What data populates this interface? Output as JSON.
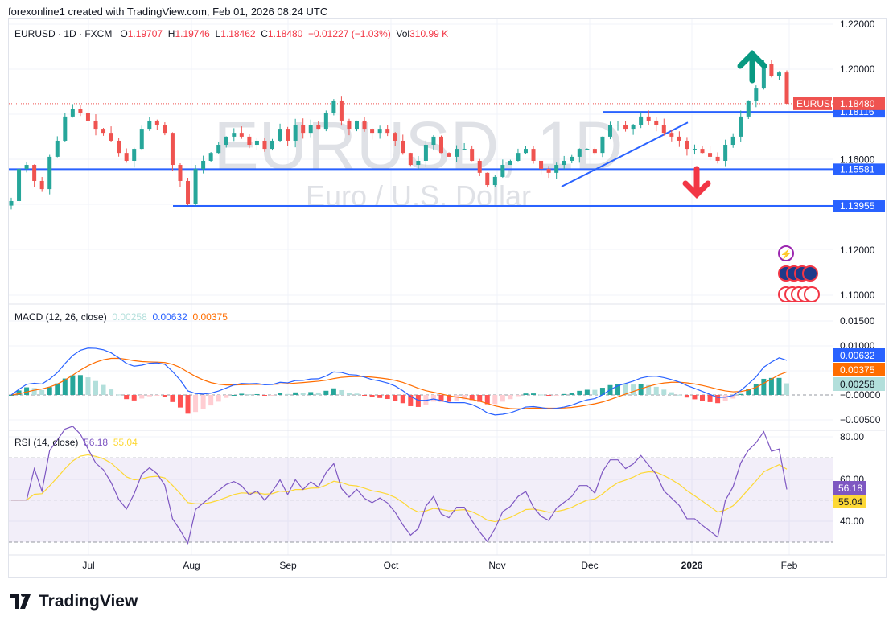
{
  "header": {
    "credit": "forexonline1 created with TradingView.com, Feb 01, 2026 08:24 UTC"
  },
  "legend": {
    "symbol": "EURUSD · 1D · FXCM",
    "o_label": "O",
    "o": "1.19707",
    "h_label": "H",
    "h": "1.19746",
    "l_label": "L",
    "l": "1.18462",
    "c_label": "C",
    "c": "1.18480",
    "change": "−0.01227 (−1.03%)",
    "vol_label": "Vol",
    "vol": "310.99 K"
  },
  "watermark": {
    "title": "EURUSD, 1D",
    "subtitle": "Euro / U.S. Dollar"
  },
  "macd_legend": {
    "name": "MACD (12, 26, close)",
    "hist": "0.00258",
    "macd": "0.00632",
    "signal": "0.00375"
  },
  "rsi_legend": {
    "name": "RSI (14, close)",
    "rsi": "56.18",
    "ma": "55.04"
  },
  "colors": {
    "up": "#26a69a",
    "down": "#ef5350",
    "level": "#2962ff",
    "macd": "#2962ff",
    "signal": "#ff6d00",
    "rsi": "#7e57c2",
    "rsi_ma": "#fdd835",
    "hist_up": "#26a69a",
    "hist_up_light": "#b2dfdb",
    "hist_down": "#ff5252",
    "hist_down_light": "#ffcdd2"
  },
  "branding": {
    "logo_text": "TradingView"
  },
  "chart_data": {
    "type": "candlestick",
    "symbol": "EURUSD",
    "interval": "1D",
    "x_ticks": [
      "Jul",
      "Aug",
      "Sep",
      "Oct",
      "Nov",
      "Dec",
      "2026",
      "Feb"
    ],
    "y_ticks": [
      "1.22000",
      "1.20000",
      "1.16000",
      "1.12000",
      "1.10000"
    ],
    "ylim": [
      1.1,
      1.22
    ],
    "last_close": 1.1848,
    "last_label": "EURUSD",
    "last_value": "1.18480",
    "closes": [
      1.1417,
      1.1559,
      1.1577,
      1.1506,
      1.147,
      1.1613,
      1.1684,
      1.1791,
      1.1826,
      1.1808,
      1.1773,
      1.1737,
      1.1719,
      1.1684,
      1.163,
      1.1595,
      1.1648,
      1.1737,
      1.1773,
      1.1755,
      1.1719,
      1.1577,
      1.1506,
      1.1406,
      1.1559,
      1.1595,
      1.163,
      1.1666,
      1.1702,
      1.1719,
      1.1702,
      1.1666,
      1.1684,
      1.1648,
      1.1684,
      1.1737,
      1.1684,
      1.1755,
      1.1719,
      1.1755,
      1.1737,
      1.1808,
      1.1862,
      1.1773,
      1.1737,
      1.1773,
      1.1737,
      1.1719,
      1.1737,
      1.1719,
      1.1684,
      1.163,
      1.1577,
      1.1595,
      1.1666,
      1.1702,
      1.163,
      1.1613,
      1.1648,
      1.1648,
      1.1595,
      1.1542,
      1.1488,
      1.1524,
      1.1577,
      1.1595,
      1.163,
      1.1648,
      1.1595,
      1.1559,
      1.1542,
      1.1577,
      1.1595,
      1.1613,
      1.1648,
      1.1648,
      1.163,
      1.1702,
      1.1755,
      1.1755,
      1.1737,
      1.1755,
      1.1791,
      1.1773,
      1.1755,
      1.1719,
      1.1702,
      1.1684,
      1.1648,
      1.1648,
      1.163,
      1.1613,
      1.1595,
      1.1666,
      1.1702,
      1.1791,
      1.1862,
      1.1915,
      1.2022,
      1.1969,
      1.1986,
      1.1848
    ],
    "levels": [
      {
        "value": 1.18116,
        "label": "1.18116"
      },
      {
        "value": 1.15581,
        "label": "1.15581"
      },
      {
        "value": 1.13955,
        "label": "1.13955"
      }
    ],
    "trendline": {
      "from": 1.1481,
      "to": 1.1765
    },
    "annotations": [
      {
        "type": "arrow-up",
        "color": "#089981"
      },
      {
        "type": "arrow-down",
        "color": "#f23645"
      }
    ],
    "macd": {
      "y_ticks": [
        "0.01500",
        "0.01000",
        "−0.00000",
        "−0.00500"
      ],
      "ylim": [
        -0.007,
        0.017
      ]
    },
    "rsi": {
      "y_ticks": [
        "80.00",
        "60.00",
        "40.00"
      ],
      "bands": [
        70,
        50,
        30
      ],
      "ylim": [
        27,
        82
      ]
    }
  }
}
